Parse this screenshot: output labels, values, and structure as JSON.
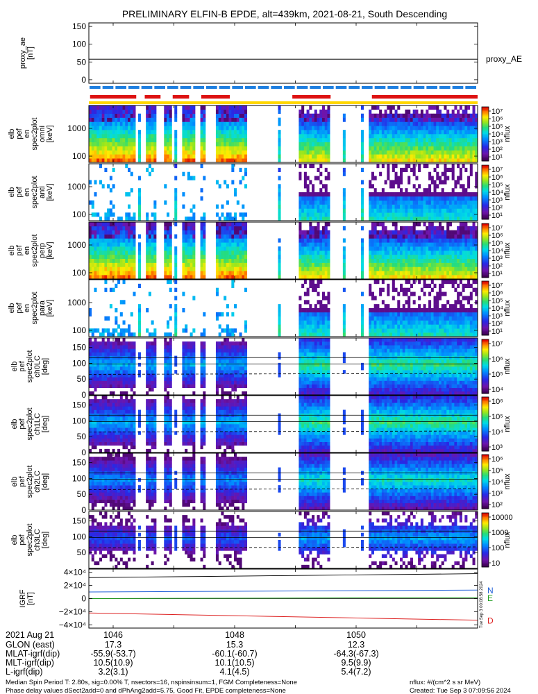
{
  "title": "PRELIMINARY ELFIN-B EPDE, alt=439km, 2021-08-21, South Descending",
  "colors": {
    "bar_red": "#dd1111",
    "bar_blue": "#1e7fe0",
    "bar_yellow": "#ffd700",
    "igrf_n": "#1f5fd8",
    "igrf_e": "#22a022",
    "igrf_d": "#dd2020"
  },
  "chart_data": [
    {
      "type": "line",
      "panel": "proxy_ae",
      "ylabel_lines": [
        "proxy_ae",
        "[nT]"
      ],
      "yticks": [
        "150",
        "100",
        "50",
        "0"
      ],
      "ylim": [
        -10,
        160
      ],
      "series": [
        {
          "name": "proxy_AE",
          "x": [
            1045.6,
            1052.0
          ],
          "y": [
            58,
            58
          ]
        }
      ]
    },
    {
      "type": "heatmap",
      "panel": "spec2plot_en_omni",
      "ylabel_lines": [
        "elb",
        "pef",
        "en",
        "spec2plot",
        "omni",
        "[keV]"
      ],
      "yticks": [
        "1000",
        "100"
      ],
      "scale": "log",
      "cbar_ticks": [
        "10⁷",
        "10⁶",
        "10⁵",
        "10⁴",
        "10³",
        "10²",
        "10¹"
      ],
      "cbar_label": "nflux"
    },
    {
      "type": "heatmap",
      "panel": "spec2plot_en_anti",
      "ylabel_lines": [
        "elb",
        "pef",
        "en",
        "spec2plot",
        "anti",
        "[keV]"
      ],
      "yticks": [
        "1000",
        "100"
      ],
      "scale": "log",
      "cbar_ticks": [
        "10⁷",
        "10⁶",
        "10⁵",
        "10⁴",
        "10³",
        "10²",
        "10¹"
      ],
      "cbar_label": "nflux"
    },
    {
      "type": "heatmap",
      "panel": "spec2plot_en_perp",
      "ylabel_lines": [
        "elb",
        "pef",
        "en",
        "spec2plot",
        "perp",
        "[keV]"
      ],
      "yticks": [
        "1000",
        "100"
      ],
      "scale": "log",
      "cbar_ticks": [
        "10⁷",
        "10⁶",
        "10⁵",
        "10⁴",
        "10³",
        "10²",
        "10¹"
      ],
      "cbar_label": "nflux"
    },
    {
      "type": "heatmap",
      "panel": "spec2plot_en_para",
      "ylabel_lines": [
        "elb",
        "pef",
        "en",
        "spec2plot",
        "para",
        "[keV]"
      ],
      "yticks": [
        "1000",
        "100"
      ],
      "scale": "log",
      "cbar_ticks": [
        "10⁷",
        "10⁶",
        "10⁵",
        "10⁴",
        "10³",
        "10²",
        "10¹"
      ],
      "cbar_label": "nflux"
    },
    {
      "type": "heatmap",
      "panel": "spec2plot_ch0LC",
      "ylabel_lines": [
        "elb",
        "pef",
        "spec2plot",
        "ch0LC",
        "[deg]"
      ],
      "yticks": [
        "150",
        "100",
        "50",
        "0"
      ],
      "ylim": [
        0,
        180
      ],
      "cbar_ticks": [
        "10⁷",
        "10⁶",
        "10⁵",
        "10⁴"
      ],
      "cbar_label": "nflux"
    },
    {
      "type": "heatmap",
      "panel": "spec2plot_ch1LC",
      "ylabel_lines": [
        "elb",
        "pef",
        "spec2plot",
        "ch1LC",
        "[deg]"
      ],
      "yticks": [
        "150",
        "100",
        "50",
        "0"
      ],
      "ylim": [
        0,
        180
      ],
      "cbar_ticks": [
        "10⁶",
        "10⁵",
        "10⁴",
        "10³"
      ],
      "cbar_label": "nflux"
    },
    {
      "type": "heatmap",
      "panel": "spec2plot_ch2LC",
      "ylabel_lines": [
        "elb",
        "pef",
        "spec2plot",
        "ch2LC",
        "[deg]"
      ],
      "yticks": [
        "150",
        "100",
        "50",
        "0"
      ],
      "ylim": [
        0,
        180
      ],
      "cbar_ticks": [
        "10⁶",
        "10⁵",
        "10⁴",
        "10³",
        "10²"
      ],
      "cbar_label": "nflux"
    },
    {
      "type": "heatmap",
      "panel": "spec2plot_ch3LC",
      "ylabel_lines": [
        "elb",
        "pef",
        "spec2plot",
        "ch3LC",
        "[deg]"
      ],
      "yticks": [
        "150",
        "100",
        "50"
      ],
      "ylim": [
        0,
        180
      ],
      "cbar_ticks": [
        "10000",
        "1000",
        "100",
        "10"
      ],
      "cbar_label": "nflux"
    },
    {
      "type": "line",
      "panel": "igrf",
      "ylabel_lines": [
        "IGRF",
        "[nT]"
      ],
      "yticks": [
        "4×10⁴",
        "2×10⁴",
        "0",
        "−2×10⁴",
        "−4×10⁴"
      ],
      "ylim": [
        -45000,
        45000
      ],
      "series": [
        {
          "name": "N",
          "x": [
            1045.6,
            1052.0
          ],
          "y": [
            10000,
            13000
          ]
        },
        {
          "name": "E",
          "x": [
            1045.6,
            1052.0
          ],
          "y": [
            0,
            1500
          ]
        },
        {
          "name": "D",
          "x": [
            1045.6,
            1052.0
          ],
          "y": [
            -22000,
            -33000
          ]
        }
      ]
    }
  ],
  "xaxis": {
    "tick_labels": [
      "1046",
      "1048",
      "1050"
    ],
    "rows": [
      {
        "label": "2021 Aug 21",
        "values": [
          "1046",
          "1048",
          "1050"
        ]
      },
      {
        "label": "GLON (east)",
        "values": [
          "17.3",
          "15.3",
          "12.3"
        ]
      },
      {
        "label": "MLAT-igrf(dip)",
        "values": [
          "-55.9(-53.7)",
          "-60.1(-60.7)",
          "-64.3(-67.3)"
        ]
      },
      {
        "label": "MLT-igrf(dip)",
        "values": [
          "10.5(10.9)",
          "10.1(10.5)",
          "9.5(9.9)"
        ]
      },
      {
        "label": "L-igrf(dip)",
        "values": [
          "3.2(3.1)",
          "4.1(4.5)",
          "5.4(7.2)"
        ]
      }
    ]
  },
  "footer": {
    "line1": "Median Spin Period T: 2.80s, sig=0.00% T, nsectors=16, nspinsinsum=1, FGM Completeness=None",
    "line2": "Phase delay values dSect2add=0 and dPhAng2add=5.75, Good Fit, EPDE completeness=None",
    "units": "nflux: #/(cm^2 s sr MeV)",
    "created": "Created: Tue Sep  3 07:09:56 2024",
    "stamp": "Tue Sep  3 00:08:58 2024"
  }
}
